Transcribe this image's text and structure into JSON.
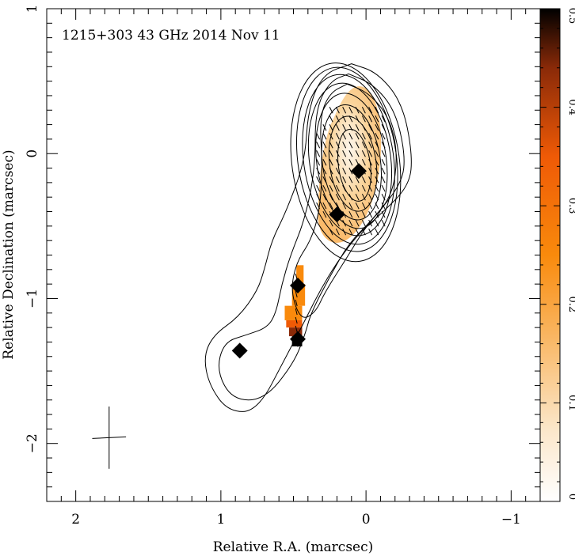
{
  "chart_data": {
    "type": "heatmap",
    "title": "1215+303 43 GHz 2014 Nov 11",
    "xlabel": "Relative R.A. (marcsec)",
    "ylabel": "Relative Declination (marcsec)",
    "xlim": [
      2.2,
      -1.2
    ],
    "ylim": [
      -2.4,
      1.0
    ],
    "x_ticks": [
      {
        "value": 2,
        "label": "2"
      },
      {
        "value": 1,
        "label": "1"
      },
      {
        "value": 0,
        "label": "0"
      },
      {
        "value": -1,
        "label": "−1"
      }
    ],
    "y_ticks": [
      {
        "value": 1,
        "label": "1"
      },
      {
        "value": 0,
        "label": "0"
      },
      {
        "value": -1,
        "label": "−1"
      },
      {
        "value": -2,
        "label": "−2"
      }
    ],
    "colorbar": {
      "range": [
        0,
        0.5
      ],
      "ticks": [
        {
          "value": 0,
          "label": "0"
        },
        {
          "value": 0.1,
          "label": "0.1"
        },
        {
          "value": 0.2,
          "label": "0.2"
        },
        {
          "value": 0.3,
          "label": "0.3"
        },
        {
          "value": 0.4,
          "label": "0.4"
        },
        {
          "value": 0.5,
          "label": "0.5"
        }
      ],
      "colors": [
        "#ffffff",
        "#fbe6c8",
        "#f9b25a",
        "#f98a0c",
        "#ef5a06",
        "#8a2a08",
        "#000000"
      ]
    },
    "components": [
      {
        "x": 0.05,
        "y": -0.12
      },
      {
        "x": 0.2,
        "y": -0.42
      },
      {
        "x": 0.47,
        "y": -0.91
      },
      {
        "x": 0.87,
        "y": -1.36
      },
      {
        "x": 0.47,
        "y": -1.28
      }
    ],
    "beam": {
      "x": 1.77,
      "y": -1.96,
      "major": 0.43,
      "minor": 0.2
    },
    "contours": [
      {
        "cx": 0.08,
        "cy": -0.08,
        "rx": 0.11,
        "ry": 0.25
      },
      {
        "cx": 0.09,
        "cy": -0.07,
        "rx": 0.16,
        "ry": 0.33
      },
      {
        "cx": 0.1,
        "cy": -0.06,
        "rx": 0.2,
        "ry": 0.4
      },
      {
        "cx": 0.1,
        "cy": -0.05,
        "rx": 0.24,
        "ry": 0.47
      },
      {
        "cx": 0.11,
        "cy": -0.04,
        "rx": 0.28,
        "ry": 0.53
      },
      {
        "cx": 0.12,
        "cy": -0.04,
        "rx": 0.31,
        "ry": 0.59
      },
      {
        "cx": 0.13,
        "cy": -0.04,
        "rx": 0.34,
        "ry": 0.64
      },
      {
        "cx": 0.14,
        "cy": -0.06,
        "rx": 0.37,
        "ry": 0.69
      }
    ],
    "outer_contours": [
      [
        [
          0.1,
          0.62
        ],
        [
          -0.08,
          0.56
        ],
        [
          -0.25,
          0.35
        ],
        [
          -0.32,
          0.0
        ],
        [
          -0.3,
          -0.22
        ],
        [
          -0.1,
          -0.42
        ],
        [
          0.05,
          -0.55
        ],
        [
          0.2,
          -0.75
        ],
        [
          0.32,
          -0.95
        ],
        [
          0.42,
          -1.15
        ],
        [
          0.55,
          -1.4
        ],
        [
          0.75,
          -1.78
        ],
        [
          0.95,
          -1.78
        ],
        [
          1.08,
          -1.6
        ],
        [
          1.12,
          -1.4
        ],
        [
          1.05,
          -1.25
        ],
        [
          0.88,
          -1.13
        ],
        [
          0.75,
          -0.95
        ],
        [
          0.7,
          -0.8
        ],
        [
          0.65,
          -0.6
        ],
        [
          0.55,
          -0.4
        ],
        [
          0.42,
          -0.05
        ],
        [
          0.4,
          0.3
        ],
        [
          0.3,
          0.55
        ],
        [
          0.1,
          0.62
        ]
      ],
      [
        [
          0.12,
          0.55
        ],
        [
          -0.05,
          0.48
        ],
        [
          -0.2,
          0.3
        ],
        [
          -0.27,
          0.0
        ],
        [
          -0.25,
          -0.2
        ],
        [
          -0.05,
          -0.45
        ],
        [
          0.12,
          -0.62
        ],
        [
          0.25,
          -0.85
        ],
        [
          0.38,
          -1.1
        ],
        [
          0.42,
          -1.25
        ],
        [
          0.5,
          -1.45
        ],
        [
          0.7,
          -1.7
        ],
        [
          0.92,
          -1.7
        ],
        [
          1.03,
          -1.5
        ],
        [
          0.98,
          -1.3
        ],
        [
          0.82,
          -1.25
        ],
        [
          0.68,
          -1.2
        ],
        [
          0.62,
          -1.1
        ],
        [
          0.58,
          -0.9
        ],
        [
          0.52,
          -0.7
        ],
        [
          0.42,
          -0.45
        ],
        [
          0.35,
          -0.1
        ],
        [
          0.35,
          0.3
        ],
        [
          0.25,
          0.5
        ],
        [
          0.12,
          0.55
        ]
      ],
      [
        [
          0.13,
          0.48
        ],
        [
          -0.02,
          0.42
        ],
        [
          -0.16,
          0.25
        ],
        [
          -0.22,
          0.0
        ],
        [
          -0.18,
          -0.3
        ],
        [
          0.0,
          -0.5
        ],
        [
          0.12,
          -0.7
        ],
        [
          0.28,
          -0.95
        ],
        [
          0.35,
          -1.1
        ],
        [
          0.45,
          -1.15
        ],
        [
          0.52,
          -0.95
        ],
        [
          0.48,
          -0.75
        ],
        [
          0.38,
          -0.6
        ],
        [
          0.32,
          -0.4
        ],
        [
          0.3,
          -0.1
        ],
        [
          0.32,
          0.25
        ],
        [
          0.25,
          0.42
        ],
        [
          0.13,
          0.48
        ]
      ]
    ]
  }
}
